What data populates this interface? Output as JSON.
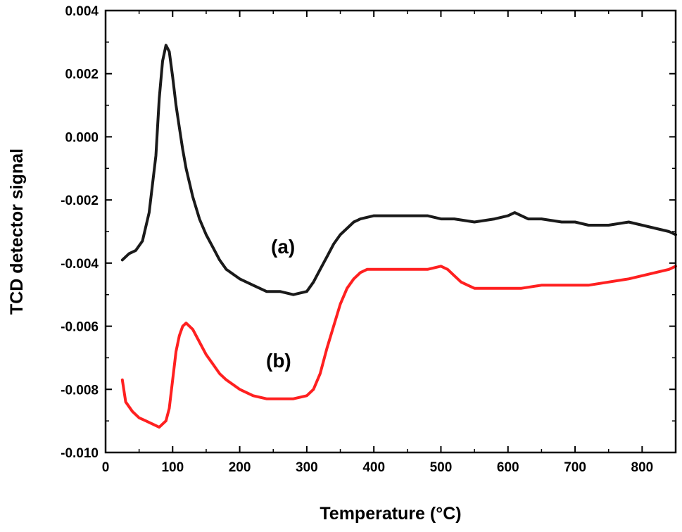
{
  "chart_data": {
    "type": "line",
    "title": "",
    "xlabel": "Temperature (°C)",
    "ylabel": "TCD detector signal",
    "xlim": [
      0,
      850
    ],
    "ylim": [
      -0.01,
      0.004
    ],
    "grid": false,
    "legend": "none",
    "x_ticks": [
      "0",
      "100",
      "200",
      "300",
      "400",
      "500",
      "600",
      "700",
      "800"
    ],
    "y_ticks": [
      "0.004",
      "0.002",
      "0.000",
      "-0.002",
      "-0.004",
      "-0.006",
      "-0.008",
      "-0.010"
    ],
    "series": [
      {
        "label": "(a)",
        "color": "#1a1a1a",
        "x": [
          25,
          35,
          45,
          55,
          65,
          75,
          80,
          85,
          90,
          95,
          100,
          105,
          110,
          115,
          120,
          130,
          140,
          150,
          160,
          170,
          180,
          200,
          220,
          240,
          260,
          280,
          300,
          310,
          320,
          330,
          340,
          350,
          360,
          370,
          380,
          400,
          420,
          450,
          480,
          500,
          520,
          550,
          580,
          600,
          610,
          620,
          630,
          650,
          680,
          700,
          720,
          750,
          780,
          800,
          820,
          840,
          850
        ],
        "y": [
          -0.0039,
          -0.0037,
          -0.0036,
          -0.0033,
          -0.0024,
          -0.0006,
          0.0012,
          0.0024,
          0.0029,
          0.0027,
          0.0019,
          0.001,
          0.0003,
          -0.0004,
          -0.001,
          -0.0019,
          -0.0026,
          -0.0031,
          -0.0035,
          -0.0039,
          -0.0042,
          -0.0045,
          -0.0047,
          -0.0049,
          -0.0049,
          -0.005,
          -0.0049,
          -0.0046,
          -0.0042,
          -0.0038,
          -0.0034,
          -0.0031,
          -0.0029,
          -0.0027,
          -0.0026,
          -0.0025,
          -0.0025,
          -0.0025,
          -0.0025,
          -0.0026,
          -0.0026,
          -0.0027,
          -0.0026,
          -0.0025,
          -0.0024,
          -0.0025,
          -0.0026,
          -0.0026,
          -0.0027,
          -0.0027,
          -0.0028,
          -0.0028,
          -0.0027,
          -0.0028,
          -0.0029,
          -0.003,
          -0.0031
        ]
      },
      {
        "label": "(b)",
        "color": "#ff2020",
        "x": [
          25,
          30,
          40,
          50,
          60,
          70,
          80,
          90,
          95,
          100,
          105,
          110,
          115,
          120,
          130,
          140,
          150,
          160,
          170,
          180,
          200,
          220,
          240,
          260,
          280,
          300,
          310,
          320,
          330,
          340,
          350,
          360,
          370,
          380,
          390,
          400,
          420,
          450,
          480,
          500,
          510,
          520,
          530,
          540,
          550,
          560,
          580,
          600,
          620,
          650,
          680,
          700,
          720,
          750,
          780,
          800,
          820,
          840,
          850
        ],
        "y": [
          -0.0077,
          -0.0084,
          -0.0087,
          -0.0089,
          -0.009,
          -0.0091,
          -0.0092,
          -0.009,
          -0.0086,
          -0.0077,
          -0.0068,
          -0.0063,
          -0.006,
          -0.0059,
          -0.0061,
          -0.0065,
          -0.0069,
          -0.0072,
          -0.0075,
          -0.0077,
          -0.008,
          -0.0082,
          -0.0083,
          -0.0083,
          -0.0083,
          -0.0082,
          -0.008,
          -0.0075,
          -0.0067,
          -0.006,
          -0.0053,
          -0.0048,
          -0.0045,
          -0.0043,
          -0.0042,
          -0.0042,
          -0.0042,
          -0.0042,
          -0.0042,
          -0.0041,
          -0.0042,
          -0.0044,
          -0.0046,
          -0.0047,
          -0.0048,
          -0.0048,
          -0.0048,
          -0.0048,
          -0.0048,
          -0.0047,
          -0.0047,
          -0.0047,
          -0.0047,
          -0.0046,
          -0.0045,
          -0.0044,
          -0.0043,
          -0.0042,
          -0.0041
        ]
      }
    ]
  }
}
